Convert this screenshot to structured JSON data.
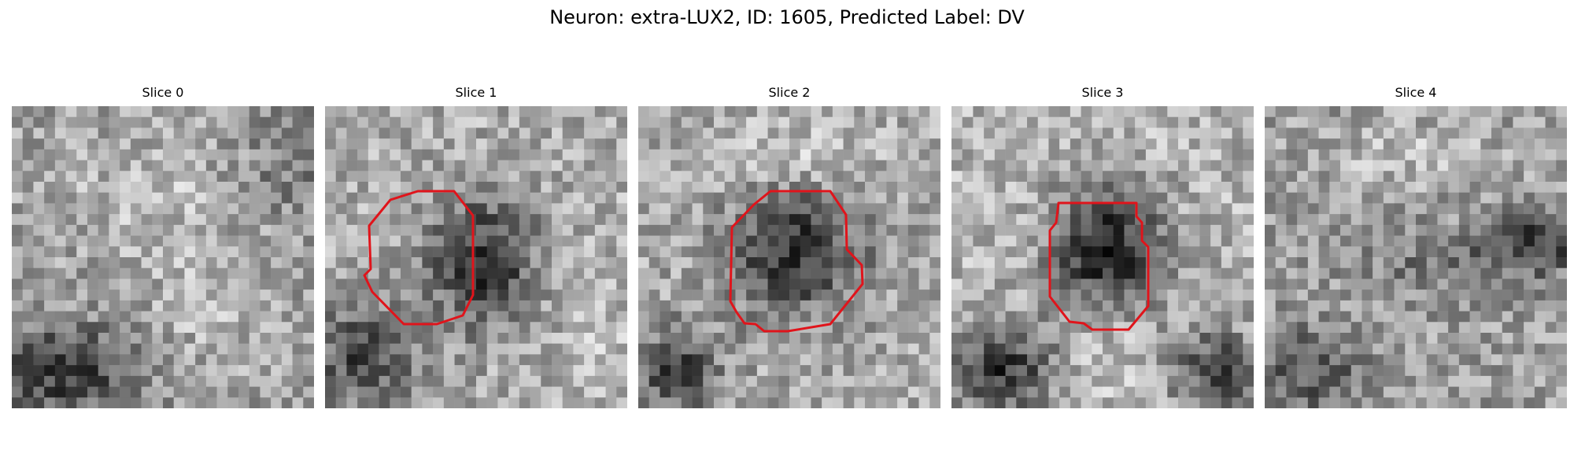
{
  "figure": {
    "title": "Neuron: extra-LUX2, ID: 1605, Predicted Label: DV"
  },
  "slices": [
    {
      "title": "Slice 0",
      "has_contour": false
    },
    {
      "title": "Slice 1",
      "has_contour": true
    },
    {
      "title": "Slice 2",
      "has_contour": true
    },
    {
      "title": "Slice 3",
      "has_contour": true
    },
    {
      "title": "Slice 4",
      "has_contour": false
    }
  ],
  "colors": {
    "contour": "#e0141b"
  },
  "colormap": "gray"
}
